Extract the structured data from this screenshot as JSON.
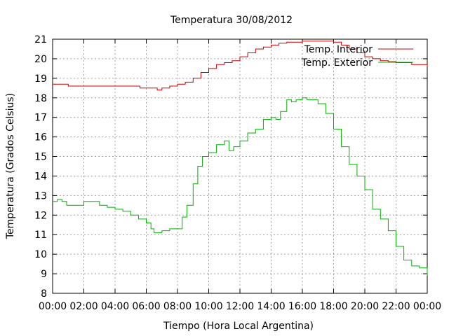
{
  "chart_data": {
    "type": "line",
    "title": "Temperatura 30/08/2012",
    "xlabel": "Tiempo (Hora Local Argentina)",
    "ylabel": "Temperatura (Grados Celsius)",
    "xlim": [
      0,
      24
    ],
    "ylim": [
      8,
      21
    ],
    "x_tick_labels": [
      "00:00",
      "02:00",
      "04:00",
      "06:00",
      "08:00",
      "10:00",
      "12:00",
      "14:00",
      "16:00",
      "18:00",
      "20:00",
      "22:00",
      "00:00"
    ],
    "y_tick_labels": [
      "8",
      "9",
      "10",
      "11",
      "12",
      "13",
      "14",
      "15",
      "16",
      "17",
      "18",
      "19",
      "20",
      "21"
    ],
    "grid": true,
    "legend_position": "top-right",
    "colors": {
      "interior": "#cc0000",
      "exterior": "#00b000"
    },
    "series": [
      {
        "name": "Temp. Interior",
        "x": [
          0,
          0.9,
          1.0,
          2,
          3,
          4,
          5,
          5.6,
          6.5,
          6.7,
          7.0,
          7.5,
          8.0,
          8.5,
          9.0,
          9.5,
          10,
          10.5,
          11,
          11.5,
          12,
          12.5,
          13,
          13.5,
          14,
          14.5,
          15,
          16,
          17,
          17.5,
          18,
          18.5,
          19,
          19.5,
          20,
          20.5,
          21,
          21.5,
          22,
          23,
          23.8,
          24
        ],
        "y": [
          18.7,
          18.7,
          18.6,
          18.6,
          18.6,
          18.6,
          18.6,
          18.5,
          18.5,
          18.4,
          18.5,
          18.6,
          18.7,
          18.8,
          19.0,
          19.3,
          19.5,
          19.7,
          19.8,
          19.9,
          20.1,
          20.3,
          20.5,
          20.6,
          20.7,
          20.8,
          20.85,
          20.9,
          20.9,
          20.9,
          20.85,
          20.7,
          20.5,
          20.3,
          20.1,
          20.0,
          19.9,
          19.85,
          19.8,
          19.7,
          19.7,
          19.6
        ]
      },
      {
        "name": "Temp. Exterior",
        "x": [
          0,
          0.3,
          0.6,
          0.9,
          1.5,
          2.0,
          2.5,
          3.0,
          3.5,
          4.0,
          4.5,
          5.0,
          5.5,
          6.0,
          6.3,
          6.5,
          7.0,
          7.5,
          8.0,
          8.3,
          8.6,
          9.0,
          9.3,
          9.6,
          10,
          10.5,
          11,
          11.3,
          11.6,
          12,
          12.5,
          13,
          13.5,
          14,
          14.3,
          14.6,
          15,
          15.3,
          15.6,
          16,
          16.3,
          16.6,
          17,
          17.5,
          18,
          18.5,
          19,
          19.5,
          20,
          20.5,
          21,
          21.5,
          22,
          22.5,
          23,
          23.5,
          24
        ],
        "y": [
          12.7,
          12.8,
          12.7,
          12.5,
          12.5,
          12.7,
          12.7,
          12.5,
          12.4,
          12.3,
          12.2,
          12.0,
          11.8,
          11.6,
          11.3,
          11.1,
          11.2,
          11.3,
          11.3,
          11.9,
          12.5,
          13.6,
          14.5,
          15.0,
          15.2,
          15.6,
          15.8,
          15.3,
          15.5,
          15.8,
          16.2,
          16.4,
          16.9,
          17.0,
          16.9,
          17.3,
          17.9,
          17.8,
          17.9,
          18.0,
          17.9,
          17.9,
          17.7,
          17.2,
          16.4,
          15.5,
          14.6,
          14.0,
          13.3,
          12.3,
          11.8,
          11.2,
          10.4,
          9.7,
          9.4,
          9.3,
          8.9
        ]
      }
    ]
  }
}
